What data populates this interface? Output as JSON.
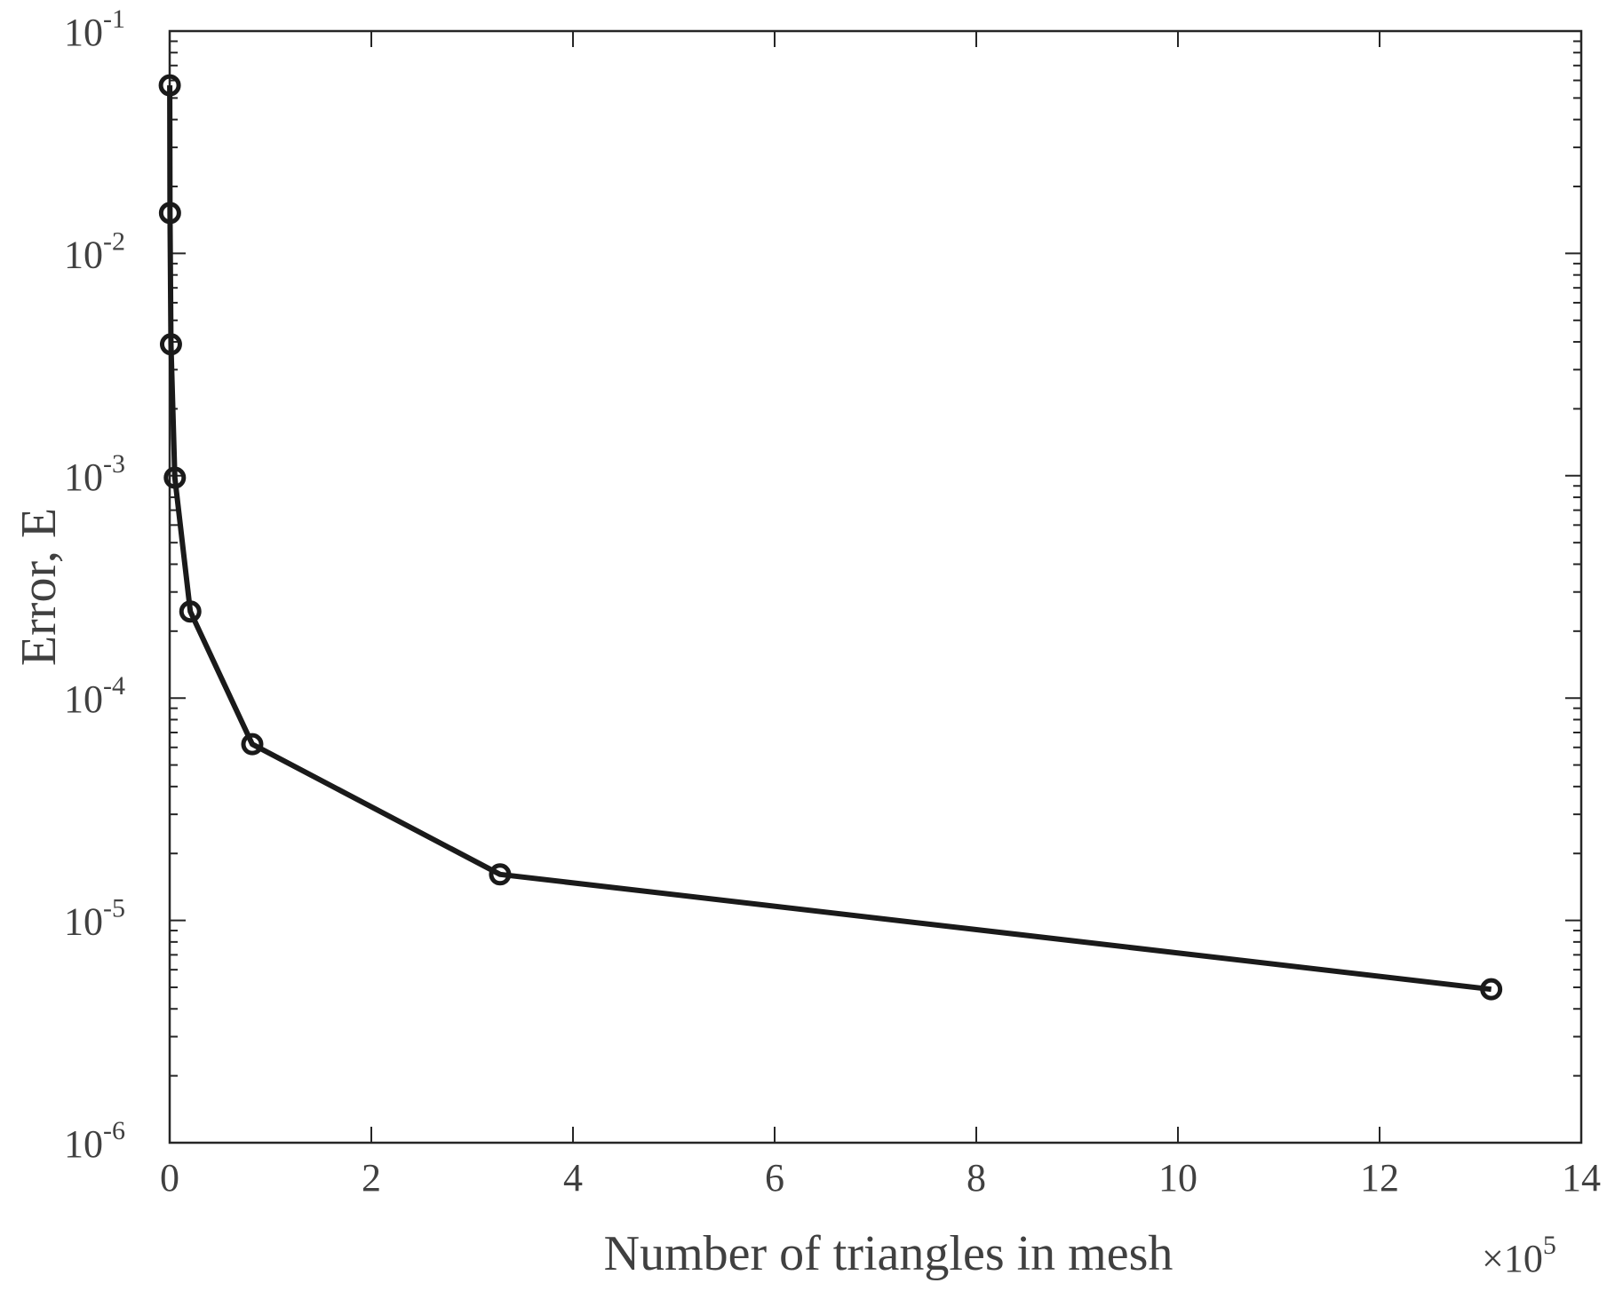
{
  "chart_data": {
    "type": "line",
    "xlabel": "Number of triangles in mesh",
    "ylabel": "Error, E",
    "x_multiplier": {
      "base": "×10",
      "exponent": "5"
    },
    "x": [
      0.0008,
      0.0032,
      0.0128,
      0.0512,
      0.2048,
      0.8192,
      3.2768,
      13.1072
    ],
    "series": [
      {
        "name": "Error",
        "color": "#1a1a1a",
        "values": [
          0.057,
          0.0152,
          0.0039,
          0.00098,
          0.000245,
          6.2e-05,
          1.61e-05,
          4.9e-06
        ]
      }
    ],
    "xlim": [
      0,
      14
    ],
    "xticks": [
      0,
      2,
      4,
      6,
      8,
      10,
      12,
      14
    ],
    "ylim": [
      1e-06,
      0.1
    ],
    "ylog": true,
    "yticks": [
      {
        "value": 1e-06,
        "label": "10",
        "exponent": "-6"
      },
      {
        "value": 1e-05,
        "label": "10",
        "exponent": "-5"
      },
      {
        "value": 0.0001,
        "label": "10",
        "exponent": "-4"
      },
      {
        "value": 0.001,
        "label": "10",
        "exponent": "-3"
      },
      {
        "value": 0.01,
        "label": "10",
        "exponent": "-2"
      },
      {
        "value": 0.1,
        "label": "10",
        "exponent": "-1"
      }
    ],
    "grid": false
  }
}
